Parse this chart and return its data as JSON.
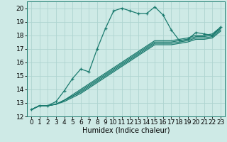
{
  "xlabel": "Humidex (Indice chaleur)",
  "bg_color": "#ceeae6",
  "grid_color": "#aed4d0",
  "line_color": "#1a7a6e",
  "xlim": [
    -0.5,
    23.5
  ],
  "ylim": [
    12,
    20.5
  ],
  "xticks": [
    0,
    1,
    2,
    3,
    4,
    5,
    6,
    7,
    8,
    9,
    10,
    11,
    12,
    13,
    14,
    15,
    16,
    17,
    18,
    19,
    20,
    21,
    22,
    23
  ],
  "yticks": [
    12,
    13,
    14,
    15,
    16,
    17,
    18,
    19,
    20
  ],
  "main_line": [
    12.5,
    12.8,
    12.8,
    13.1,
    13.9,
    14.8,
    15.5,
    15.3,
    17.0,
    18.5,
    19.8,
    20.0,
    19.8,
    19.6,
    19.6,
    20.1,
    19.5,
    18.4,
    17.6,
    17.7,
    18.2,
    18.1,
    18.0,
    18.6
  ],
  "ref_lines": [
    [
      12.5,
      12.8,
      12.8,
      12.9,
      13.2,
      13.6,
      14.0,
      14.4,
      14.8,
      15.2,
      15.6,
      16.0,
      16.4,
      16.8,
      17.2,
      17.6,
      17.6,
      17.6,
      17.7,
      17.8,
      18.0,
      18.0,
      18.1,
      18.6
    ],
    [
      12.5,
      12.8,
      12.8,
      12.9,
      13.2,
      13.5,
      13.9,
      14.3,
      14.7,
      15.1,
      15.5,
      15.9,
      16.3,
      16.7,
      17.1,
      17.5,
      17.5,
      17.5,
      17.6,
      17.7,
      17.9,
      17.9,
      18.0,
      18.5
    ],
    [
      12.5,
      12.8,
      12.8,
      12.9,
      13.2,
      13.5,
      13.8,
      14.2,
      14.6,
      15.0,
      15.4,
      15.8,
      16.2,
      16.6,
      17.0,
      17.4,
      17.4,
      17.4,
      17.5,
      17.6,
      17.8,
      17.8,
      17.9,
      18.4
    ],
    [
      12.5,
      12.8,
      12.8,
      12.9,
      13.1,
      13.4,
      13.7,
      14.1,
      14.5,
      14.9,
      15.3,
      15.7,
      16.1,
      16.5,
      16.9,
      17.3,
      17.3,
      17.3,
      17.4,
      17.5,
      17.7,
      17.7,
      17.8,
      18.3
    ]
  ],
  "marker": "+",
  "marker_size": 3,
  "linewidth": 0.9,
  "label_fontsize": 7,
  "tick_fontsize": 6.5
}
